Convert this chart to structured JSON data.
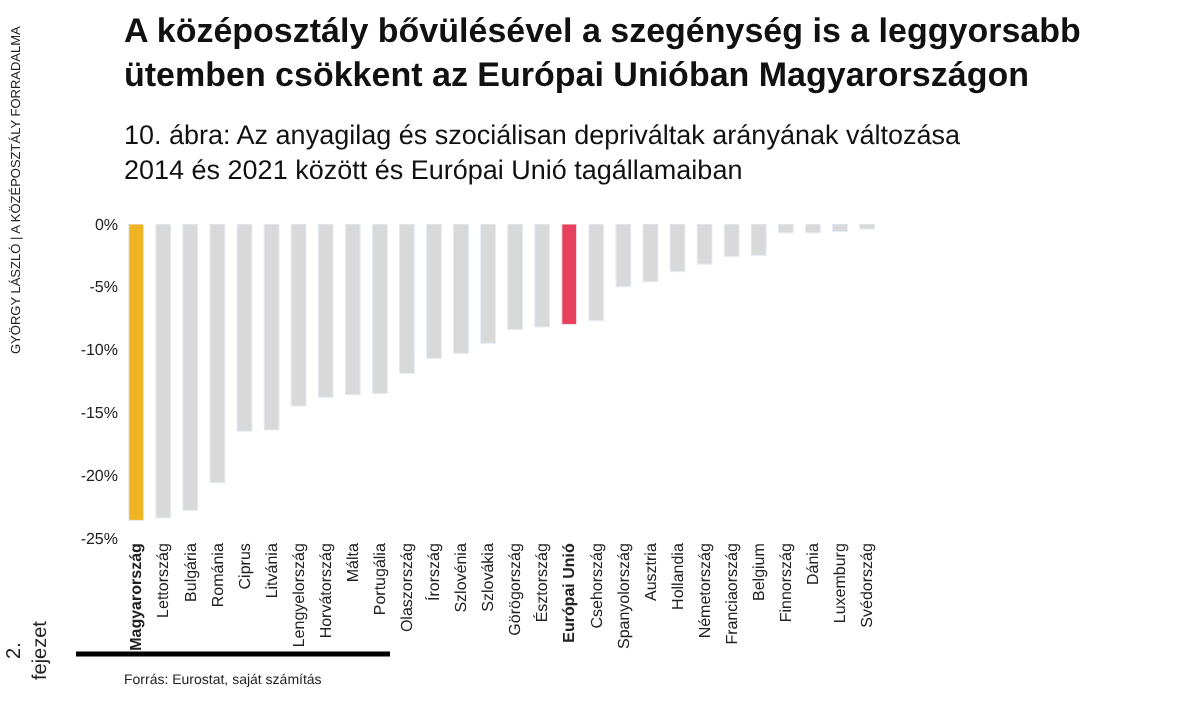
{
  "chart_data": {
    "type": "bar",
    "title": "A középosztály bővülésével a szegénység is a leggyorsabb ütemben csökkent az Európai Unióban Magyarországon",
    "subtitle": "10. ábra: Az anyagilag és szociálisan depriváltak arányának változása 2014 és 2021 között és Európai Unió tagállamaiban",
    "categories": [
      "Magyarország",
      "Lettország",
      "Bulgária",
      "Románia",
      "Ciprus",
      "Litvánia",
      "Lengyelország",
      "Horvátország",
      "Málta",
      "Portugália",
      "Olaszország",
      "Írország",
      "Szlovénia",
      "Szlovákia",
      "Görögország",
      "Észtország",
      "Európai Unió",
      "Csehország",
      "Spanyolország",
      "Ausztria",
      "Hollandia",
      "Németország",
      "Franciaország",
      "Belgium",
      "Finnország",
      "Dánia",
      "Luxemburg",
      "Svédország"
    ],
    "values": [
      -23.6,
      -23.4,
      -22.8,
      -20.6,
      -16.5,
      -16.4,
      -14.5,
      -13.8,
      -13.6,
      -13.5,
      -11.9,
      -10.7,
      -10.3,
      -9.5,
      -8.4,
      -8.2,
      -8.0,
      -7.7,
      -5.0,
      -4.6,
      -3.8,
      -3.2,
      -2.6,
      -2.5,
      -0.7,
      -0.7,
      -0.6,
      -0.4
    ],
    "colors": [
      "#f0b323",
      "#d9d9d9",
      "#d9d9d9",
      "#d9d9d9",
      "#d9d9d9",
      "#d9d9d9",
      "#d9d9d9",
      "#d9d9d9",
      "#d9d9d9",
      "#d9d9d9",
      "#d9d9d9",
      "#d9d9d9",
      "#d9d9d9",
      "#d9d9d9",
      "#d9d9d9",
      "#d9d9d9",
      "#e8405a",
      "#d9d9d9",
      "#d9d9d9",
      "#d9d9d9",
      "#d9d9d9",
      "#d9d9d9",
      "#d9d9d9",
      "#d9d9d9",
      "#d9d9d9",
      "#d9d9d9",
      "#d9d9d9",
      "#d9d9d9"
    ],
    "ylim": [
      -25,
      0
    ],
    "yticks": [
      {
        "value": 0,
        "label": "0%"
      },
      {
        "value": -5,
        "label": "-5%"
      },
      {
        "value": -10,
        "label": "-10%"
      },
      {
        "value": -15,
        "label": "-15%"
      },
      {
        "value": -20,
        "label": "-20%"
      },
      {
        "value": -25,
        "label": "-25%"
      }
    ],
    "annotations": [
      "Forrás: Eurostat, saját számítás",
      "GYÖRGY LÁSZLÓ | A KÖZÉPOSZTÁLY FORRADALMA",
      "2. fejezet"
    ]
  }
}
